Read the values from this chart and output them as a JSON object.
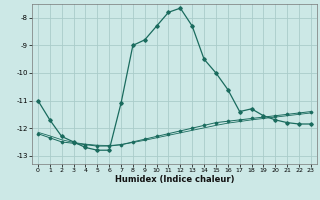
{
  "title": "",
  "xlabel": "Humidex (Indice chaleur)",
  "background_color": "#cce8e6",
  "grid_color": "#aaccca",
  "line_color": "#1a6b5e",
  "x_values": [
    0,
    1,
    2,
    3,
    4,
    5,
    6,
    7,
    8,
    9,
    10,
    11,
    12,
    13,
    14,
    15,
    16,
    17,
    18,
    19,
    20,
    21,
    22,
    23
  ],
  "line1_y": [
    -11.0,
    -11.7,
    -12.3,
    -12.5,
    -12.7,
    -12.8,
    -12.8,
    -11.1,
    -9.0,
    -8.8,
    -8.3,
    -7.8,
    -7.65,
    -8.3,
    -9.5,
    -10.0,
    -10.6,
    -11.4,
    -11.3,
    -11.55,
    -11.7,
    -11.8,
    -11.85,
    -11.85
  ],
  "line2_y": [
    -12.2,
    -12.35,
    -12.5,
    -12.55,
    -12.6,
    -12.65,
    -12.65,
    -12.6,
    -12.5,
    -12.4,
    -12.3,
    -12.2,
    -12.1,
    -12.0,
    -11.9,
    -11.8,
    -11.75,
    -11.7,
    -11.65,
    -11.6,
    -11.55,
    -11.5,
    -11.45,
    -11.4
  ],
  "line3_y": [
    -12.15,
    -12.28,
    -12.42,
    -12.52,
    -12.58,
    -12.62,
    -12.63,
    -12.6,
    -12.52,
    -12.44,
    -12.35,
    -12.26,
    -12.17,
    -12.08,
    -11.99,
    -11.9,
    -11.82,
    -11.76,
    -11.7,
    -11.65,
    -11.6,
    -11.55,
    -11.5,
    -11.45
  ],
  "ylim": [
    -13.3,
    -7.5
  ],
  "xlim": [
    -0.5,
    23.5
  ],
  "yticks": [
    -8,
    -9,
    -10,
    -11,
    -12,
    -13
  ],
  "xticks": [
    0,
    1,
    2,
    3,
    4,
    5,
    6,
    7,
    8,
    9,
    10,
    11,
    12,
    13,
    14,
    15,
    16,
    17,
    18,
    19,
    20,
    21,
    22,
    23
  ]
}
